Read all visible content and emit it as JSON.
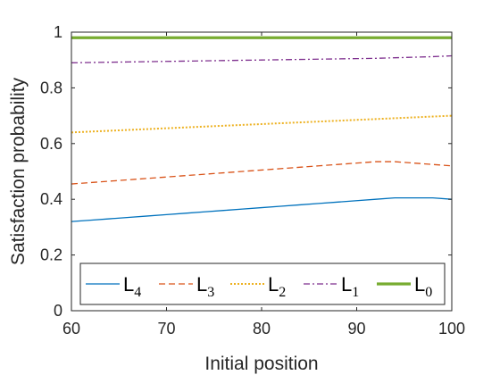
{
  "chart_data": {
    "type": "line",
    "xlabel": "Initial position",
    "ylabel": "Satisfaction probability",
    "xlim": [
      60,
      100
    ],
    "ylim": [
      0,
      1
    ],
    "x_ticks": [
      "60",
      "70",
      "80",
      "90",
      "100"
    ],
    "y_ticks": [
      "0",
      "0.2",
      "0.4",
      "0.6",
      "0.8",
      "1"
    ],
    "grid": false,
    "legend_position": "bottom",
    "legend_orientation": "horizontal",
    "series": [
      {
        "name": "L",
        "sub": "4",
        "color": "#0072BD",
        "style": "solid",
        "x": [
          60,
          62,
          64,
          66,
          68,
          70,
          72,
          74,
          76,
          78,
          80,
          82,
          84,
          86,
          88,
          90,
          92,
          94,
          96,
          98,
          100
        ],
        "y": [
          0.32,
          0.325,
          0.33,
          0.335,
          0.34,
          0.345,
          0.35,
          0.355,
          0.36,
          0.365,
          0.37,
          0.375,
          0.38,
          0.385,
          0.39,
          0.395,
          0.4,
          0.405,
          0.405,
          0.405,
          0.4
        ]
      },
      {
        "name": "L",
        "sub": "3",
        "color": "#D95319",
        "style": "dashed",
        "x": [
          60,
          62,
          64,
          66,
          68,
          70,
          72,
          74,
          76,
          78,
          80,
          82,
          84,
          86,
          88,
          90,
          92,
          94,
          96,
          98,
          100
        ],
        "y": [
          0.455,
          0.46,
          0.465,
          0.47,
          0.475,
          0.48,
          0.485,
          0.49,
          0.495,
          0.5,
          0.505,
          0.51,
          0.515,
          0.52,
          0.525,
          0.53,
          0.535,
          0.535,
          0.53,
          0.525,
          0.52
        ]
      },
      {
        "name": "L",
        "sub": "2",
        "color": "#EDB120",
        "style": "dotted",
        "x": [
          60,
          62,
          64,
          66,
          68,
          70,
          72,
          74,
          76,
          78,
          80,
          82,
          84,
          86,
          88,
          90,
          92,
          94,
          96,
          98,
          100
        ],
        "y": [
          0.64,
          0.643,
          0.646,
          0.649,
          0.652,
          0.655,
          0.658,
          0.661,
          0.664,
          0.667,
          0.67,
          0.673,
          0.676,
          0.679,
          0.682,
          0.685,
          0.688,
          0.691,
          0.694,
          0.697,
          0.7
        ]
      },
      {
        "name": "L",
        "sub": "1",
        "color": "#7E2F8E",
        "style": "dashdot",
        "x": [
          60,
          62,
          64,
          66,
          68,
          70,
          72,
          74,
          76,
          78,
          80,
          82,
          84,
          86,
          88,
          90,
          92,
          94,
          96,
          98,
          100
        ],
        "y": [
          0.89,
          0.891,
          0.892,
          0.893,
          0.894,
          0.895,
          0.896,
          0.897,
          0.898,
          0.899,
          0.9,
          0.901,
          0.902,
          0.903,
          0.904,
          0.905,
          0.906,
          0.908,
          0.91,
          0.912,
          0.915
        ]
      },
      {
        "name": "L",
        "sub": "0",
        "color": "#77AC30",
        "style": "thick",
        "x": [
          60,
          62,
          64,
          66,
          68,
          70,
          72,
          74,
          76,
          78,
          80,
          82,
          84,
          86,
          88,
          90,
          92,
          94,
          96,
          98,
          100
        ],
        "y": [
          0.98,
          0.98,
          0.98,
          0.98,
          0.98,
          0.98,
          0.98,
          0.98,
          0.98,
          0.98,
          0.98,
          0.98,
          0.98,
          0.98,
          0.98,
          0.98,
          0.98,
          0.98,
          0.98,
          0.98,
          0.98
        ]
      }
    ]
  }
}
